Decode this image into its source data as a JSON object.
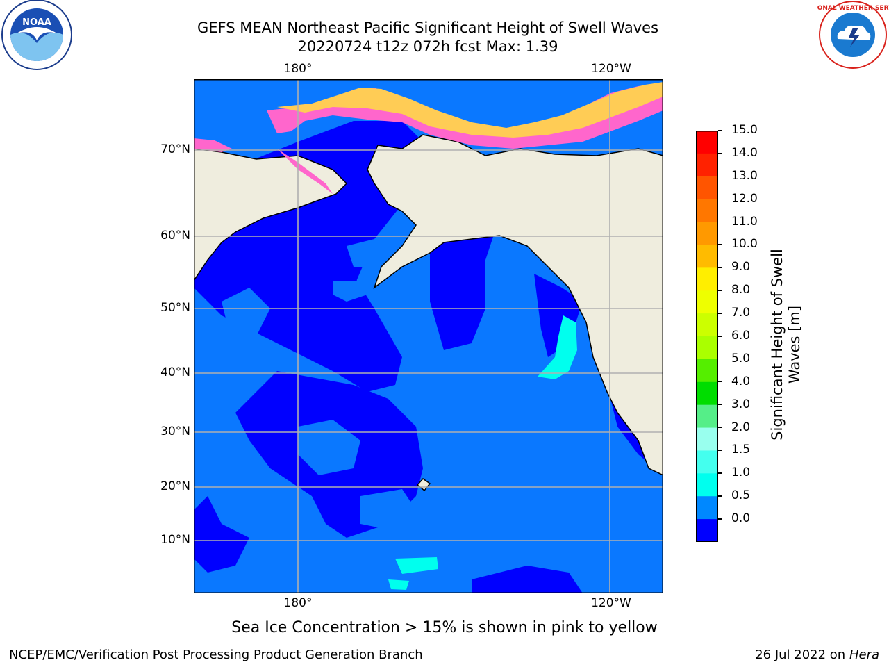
{
  "title_line1": "GEFS MEAN Northeast Pacific Significant Height of Swell Waves",
  "title_line2": "20220724 t12z 072h fcst   Max: 1.39",
  "lon_ticks": [
    "180°",
    "120°W"
  ],
  "lat_ticks": [
    "70°N",
    "60°N",
    "50°N",
    "40°N",
    "30°N",
    "20°N",
    "10°N"
  ],
  "colorbar": {
    "label_line1": "Significant Height of Swell",
    "label_line2": "Waves [m]",
    "ticks": [
      "15.0",
      "14.0",
      "13.0",
      "12.0",
      "11.0",
      "10.0",
      "9.0",
      "8.0",
      "7.0",
      "6.0",
      "5.0",
      "4.0",
      "3.0",
      "2.0",
      "1.5",
      "1.0",
      "0.5",
      "0.0"
    ],
    "colors_top_to_bottom": [
      "#ff0000",
      "#ff2200",
      "#ff5500",
      "#ff7700",
      "#ff9900",
      "#ffbb00",
      "#ffee00",
      "#eeff00",
      "#ccff00",
      "#aaff00",
      "#55ee00",
      "#00dd00",
      "#55ee88",
      "#99ffee",
      "#44ffee",
      "#00ffee",
      "#0088ff",
      "#0000ff"
    ]
  },
  "note": "Sea Ice Concentration > 15% is shown in pink to yellow",
  "footer_left": "NCEP/EMC/Verification Post Processing Product Generation Branch",
  "footer_right_date": "26 Jul 2022 on ",
  "footer_right_host": "Hera",
  "logos": {
    "left": "NOAA",
    "right": "NATIONAL WEATHER SERVICE"
  },
  "colors": {
    "land": "#efedde",
    "ocean_low": "#0000ff",
    "ocean_mid": "#0a78ff",
    "ocean_high": "#00ffee",
    "grid": "#b0b0b0"
  }
}
